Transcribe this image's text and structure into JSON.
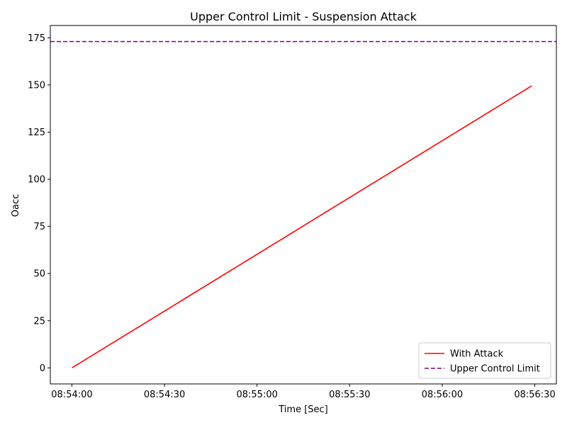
{
  "chart_data": {
    "type": "line",
    "title": "Upper Control Limit - Suspension Attack",
    "xlabel": "Time [Sec]",
    "ylabel": "Oacc",
    "x_tick_labels": [
      "08:54:00",
      "08:54:30",
      "08:55:00",
      "08:55:30",
      "08:56:00",
      "08:56:30"
    ],
    "x_ticks_seconds": [
      0,
      30,
      60,
      90,
      120,
      150
    ],
    "y_ticks": [
      0,
      25,
      50,
      75,
      100,
      125,
      150,
      175
    ],
    "xlim_seconds": [
      -7,
      157
    ],
    "ylim": [
      -8.5,
      181.5
    ],
    "grid": false,
    "legend_position": "lower right",
    "series": [
      {
        "name": "With Attack",
        "color": "#ff0000",
        "style": "solid",
        "x_seconds": [
          0,
          149
        ],
        "values": [
          0,
          149.5
        ]
      },
      {
        "name": "Upper Control Limit",
        "color": "#800080",
        "style": "dashed",
        "horizontal_value": 173
      }
    ]
  }
}
